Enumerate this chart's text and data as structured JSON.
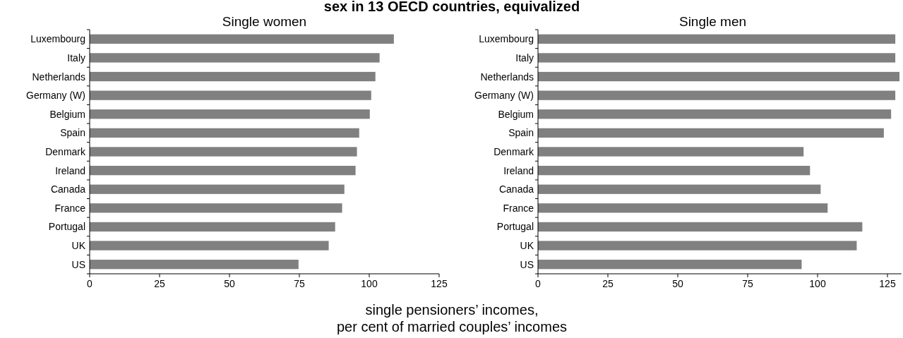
{
  "chart_data": [
    {
      "type": "bar",
      "orientation": "horizontal",
      "title": "Single women",
      "annotations": [
        "sex in 13 OECD countries, equivalized"
      ],
      "xlabel": "single pensioners’ incomes,\nper cent of married couples’ incomes",
      "categories": [
        "Luxembourg",
        "Italy",
        "Netherlands",
        "Germany (W)",
        "Belgium",
        "Spain",
        "Denmark",
        "Ireland",
        "Canada",
        "France",
        "Portugal",
        "UK",
        "US"
      ],
      "values": [
        108.8,
        103.7,
        102.2,
        100.7,
        100.2,
        96.4,
        95.6,
        95.1,
        91.1,
        90.3,
        87.8,
        85.5,
        74.7
      ],
      "color": "#808080",
      "xlim": [
        0,
        125
      ],
      "xticks": [
        0,
        25,
        50,
        75,
        100,
        125
      ],
      "grid": false
    },
    {
      "type": "bar",
      "orientation": "horizontal",
      "title": "Single men",
      "categories": [
        "Luxembourg",
        "Italy",
        "Netherlands",
        "Germany (W)",
        "Belgium",
        "Spain",
        "Denmark",
        "Ireland",
        "Canada",
        "France",
        "Portugal",
        "UK",
        "US"
      ],
      "values": [
        127.8,
        127.8,
        129.3,
        127.8,
        126.3,
        123.7,
        95.0,
        97.3,
        101.1,
        103.6,
        116.0,
        114.0,
        94.3
      ],
      "color": "#808080",
      "xlim": [
        0,
        130
      ],
      "xticks": [
        0,
        25,
        50,
        75,
        100,
        125
      ],
      "grid": false
    }
  ]
}
